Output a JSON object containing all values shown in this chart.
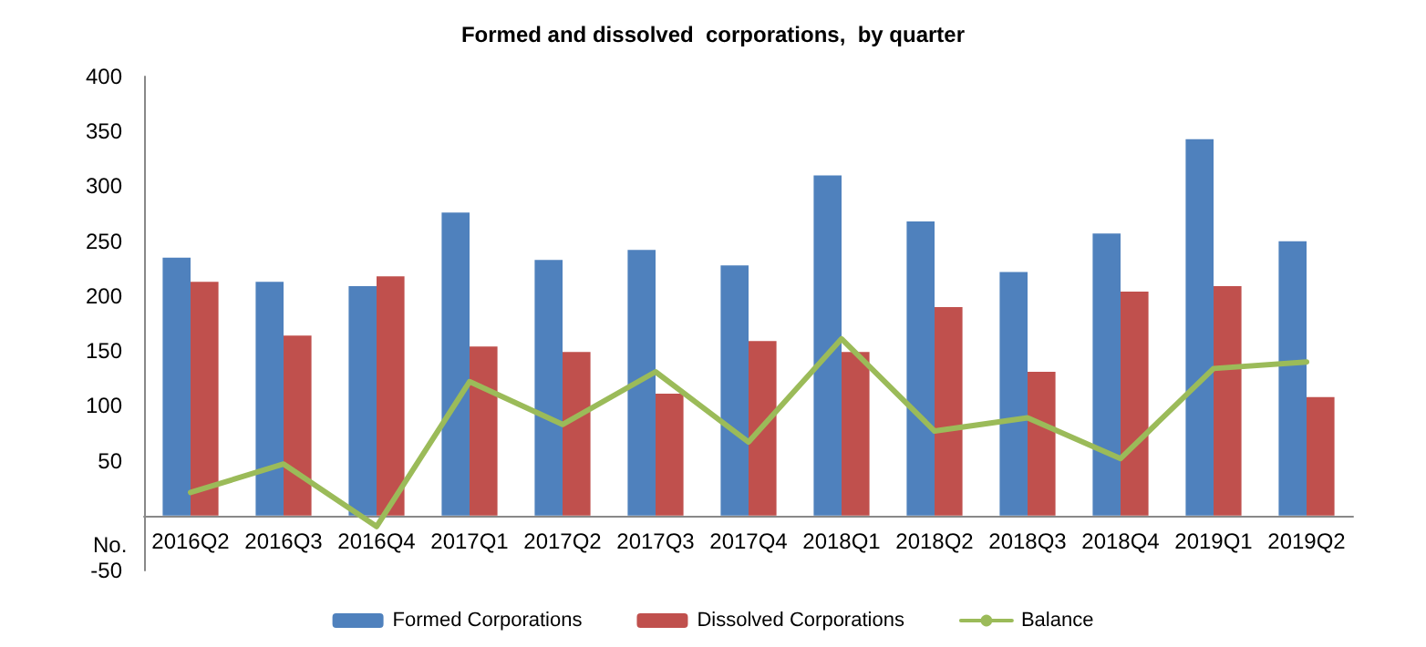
{
  "chart_data": {
    "type": "bar",
    "title": "Formed and dissolved  corporations,  by quarter",
    "ylabel": "No.",
    "categories": [
      "2016Q2",
      "2016Q3",
      "2016Q4",
      "2017Q1",
      "2017Q2",
      "2017Q3",
      "2017Q4",
      "2018Q1",
      "2018Q2",
      "2018Q3",
      "2018Q4",
      "2019Q1",
      "2019Q2"
    ],
    "series": [
      {
        "name": "Formed Corporations",
        "color": "#4f81bd",
        "values": [
          235,
          213,
          209,
          276,
          233,
          242,
          228,
          310,
          268,
          222,
          257,
          343,
          250
        ]
      },
      {
        "name": "Dissolved Corporations",
        "color": "#c0504d",
        "values": [
          213,
          164,
          218,
          154,
          149,
          111,
          159,
          149,
          190,
          131,
          204,
          209,
          108
        ]
      },
      {
        "name": "Balance",
        "type": "line",
        "color": "#9bbb59",
        "values": [
          21,
          47,
          -10,
          122,
          83,
          131,
          67,
          161,
          77,
          89,
          52,
          134,
          140
        ]
      }
    ],
    "ylim": [
      -50,
      400
    ],
    "yticks": [
      -50,
      50,
      100,
      150,
      200,
      250,
      300,
      350,
      400
    ],
    "grid": false,
    "legend": "bottom",
    "marker": "none"
  }
}
